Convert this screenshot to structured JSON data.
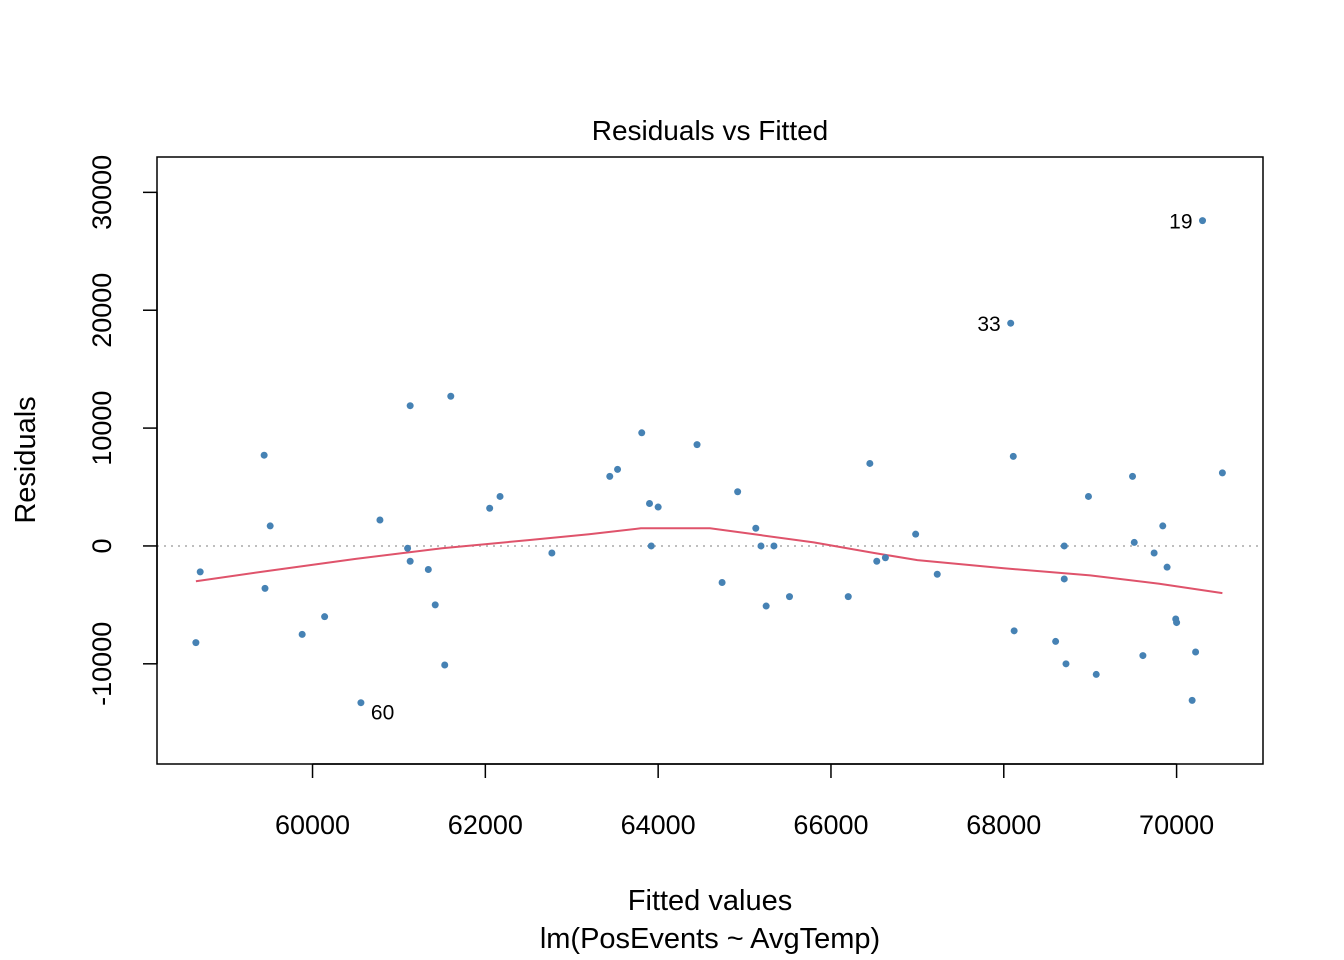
{
  "colors": {
    "point": "#4682b4",
    "smooth": "#df536b",
    "zero_line": "#bebebe",
    "axis": "#000000",
    "background": "#ffffff"
  },
  "chart_data": {
    "type": "scatter",
    "title": "Residuals vs Fitted",
    "xlabel": "Fitted values",
    "subtitle": "lm(PosEvents ~ AvgTemp)",
    "ylabel": "Residuals",
    "xlim": [
      58200,
      71000
    ],
    "ylim": [
      -18500,
      33000
    ],
    "x_ticks": [
      60000,
      62000,
      64000,
      66000,
      68000,
      70000
    ],
    "x_tick_labels": [
      "60000",
      "62000",
      "64000",
      "66000",
      "68000",
      "70000"
    ],
    "y_ticks": [
      -10000,
      0,
      10000,
      20000,
      30000
    ],
    "y_tick_labels": [
      "-10000",
      "0",
      "10000",
      "20000",
      "30000"
    ],
    "grid": false,
    "reference_line": {
      "y": 0,
      "style": "dotted"
    },
    "points": [
      {
        "x": 58650,
        "y": -8200
      },
      {
        "x": 58700,
        "y": -2200
      },
      {
        "x": 59440,
        "y": 7700
      },
      {
        "x": 59450,
        "y": -3600
      },
      {
        "x": 59510,
        "y": 1700
      },
      {
        "x": 59880,
        "y": -7500
      },
      {
        "x": 60140,
        "y": -6000
      },
      {
        "x": 60560,
        "y": -13300
      },
      {
        "x": 60780,
        "y": 2200
      },
      {
        "x": 61100,
        "y": -200
      },
      {
        "x": 61130,
        "y": 11900
      },
      {
        "x": 61130,
        "y": -1300
      },
      {
        "x": 61340,
        "y": -2000
      },
      {
        "x": 61420,
        "y": -5000
      },
      {
        "x": 61530,
        "y": -10100
      },
      {
        "x": 61600,
        "y": 12700
      },
      {
        "x": 62050,
        "y": 3200
      },
      {
        "x": 62170,
        "y": 4200
      },
      {
        "x": 62770,
        "y": -600
      },
      {
        "x": 63440,
        "y": 5900
      },
      {
        "x": 63530,
        "y": 6500
      },
      {
        "x": 63810,
        "y": 9600
      },
      {
        "x": 63900,
        "y": 3600
      },
      {
        "x": 63920,
        "y": 0
      },
      {
        "x": 64000,
        "y": 3300
      },
      {
        "x": 64450,
        "y": 8600
      },
      {
        "x": 64740,
        "y": -3100
      },
      {
        "x": 64920,
        "y": 4600
      },
      {
        "x": 65130,
        "y": 1500
      },
      {
        "x": 65190,
        "y": 0
      },
      {
        "x": 65250,
        "y": -5100
      },
      {
        "x": 65340,
        "y": 0
      },
      {
        "x": 65520,
        "y": -4300
      },
      {
        "x": 66200,
        "y": -4300
      },
      {
        "x": 66450,
        "y": 7000
      },
      {
        "x": 66530,
        "y": -1300
      },
      {
        "x": 66630,
        "y": -1000
      },
      {
        "x": 66980,
        "y": 1000
      },
      {
        "x": 67230,
        "y": -2400
      },
      {
        "x": 68080,
        "y": 18900
      },
      {
        "x": 68110,
        "y": 7600
      },
      {
        "x": 68120,
        "y": -7200
      },
      {
        "x": 68600,
        "y": -8100
      },
      {
        "x": 68700,
        "y": 0
      },
      {
        "x": 68700,
        "y": -2800
      },
      {
        "x": 68720,
        "y": -10000
      },
      {
        "x": 68980,
        "y": 4200
      },
      {
        "x": 69070,
        "y": -10900
      },
      {
        "x": 69490,
        "y": 5900
      },
      {
        "x": 69510,
        "y": 300
      },
      {
        "x": 69610,
        "y": -9300
      },
      {
        "x": 69740,
        "y": -600
      },
      {
        "x": 69840,
        "y": 1700
      },
      {
        "x": 69890,
        "y": -1800
      },
      {
        "x": 69990,
        "y": -6200
      },
      {
        "x": 70000,
        "y": -6500
      },
      {
        "x": 70180,
        "y": -13100
      },
      {
        "x": 70220,
        "y": -9000
      },
      {
        "x": 70300,
        "y": 27600
      },
      {
        "x": 70530,
        "y": 6200
      }
    ],
    "labeled_points": [
      {
        "label": "19",
        "x": 70300,
        "y": 27600,
        "side": "left"
      },
      {
        "label": "33",
        "x": 68080,
        "y": 18900,
        "side": "left"
      },
      {
        "label": "60",
        "x": 60560,
        "y": -13300,
        "side": "right"
      }
    ],
    "smooth_line": {
      "x": [
        58650,
        59500,
        60500,
        61500,
        62500,
        63200,
        63800,
        64600,
        65200,
        65800,
        66500,
        67000,
        68000,
        69000,
        69800,
        70530
      ],
      "y": [
        -3000,
        -2100,
        -1100,
        -200,
        500,
        1000,
        1500,
        1500,
        900,
        300,
        -600,
        -1200,
        -1900,
        -2500,
        -3200,
        -4000
      ]
    }
  }
}
